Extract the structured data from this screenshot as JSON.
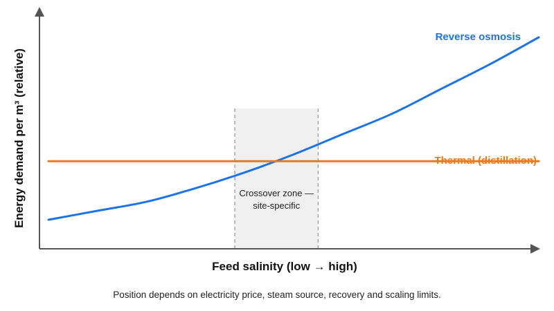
{
  "chart_data": {
    "type": "line",
    "title": "",
    "xlabel": "Feed salinity (low → high)",
    "ylabel": "Energy demand per m³ (relative)",
    "x_ticks": "none",
    "y_ticks": "none",
    "grid": false,
    "series": [
      {
        "name": "Reverse osmosis",
        "color": "#1a73e8",
        "x": [
          0.0,
          0.1,
          0.2,
          0.3,
          0.4,
          0.5,
          0.6,
          0.7,
          0.8,
          0.9,
          1.0
        ],
        "y": [
          0.24,
          0.28,
          0.32,
          0.38,
          0.45,
          0.53,
          0.62,
          0.71,
          0.82,
          0.93,
          1.05
        ]
      },
      {
        "name": "Thermal (distillation)",
        "color": "#f07818",
        "x": [
          0.0,
          1.0
        ],
        "y": [
          0.5,
          0.5
        ]
      }
    ],
    "annotations": [
      {
        "type": "shaded-band",
        "x_range": [
          0.38,
          0.55
        ],
        "label_lines": [
          "Crossover zone —",
          "site-specific"
        ]
      }
    ],
    "caption": "Position depends on electricity price, steam source, recovery and scaling limits."
  }
}
